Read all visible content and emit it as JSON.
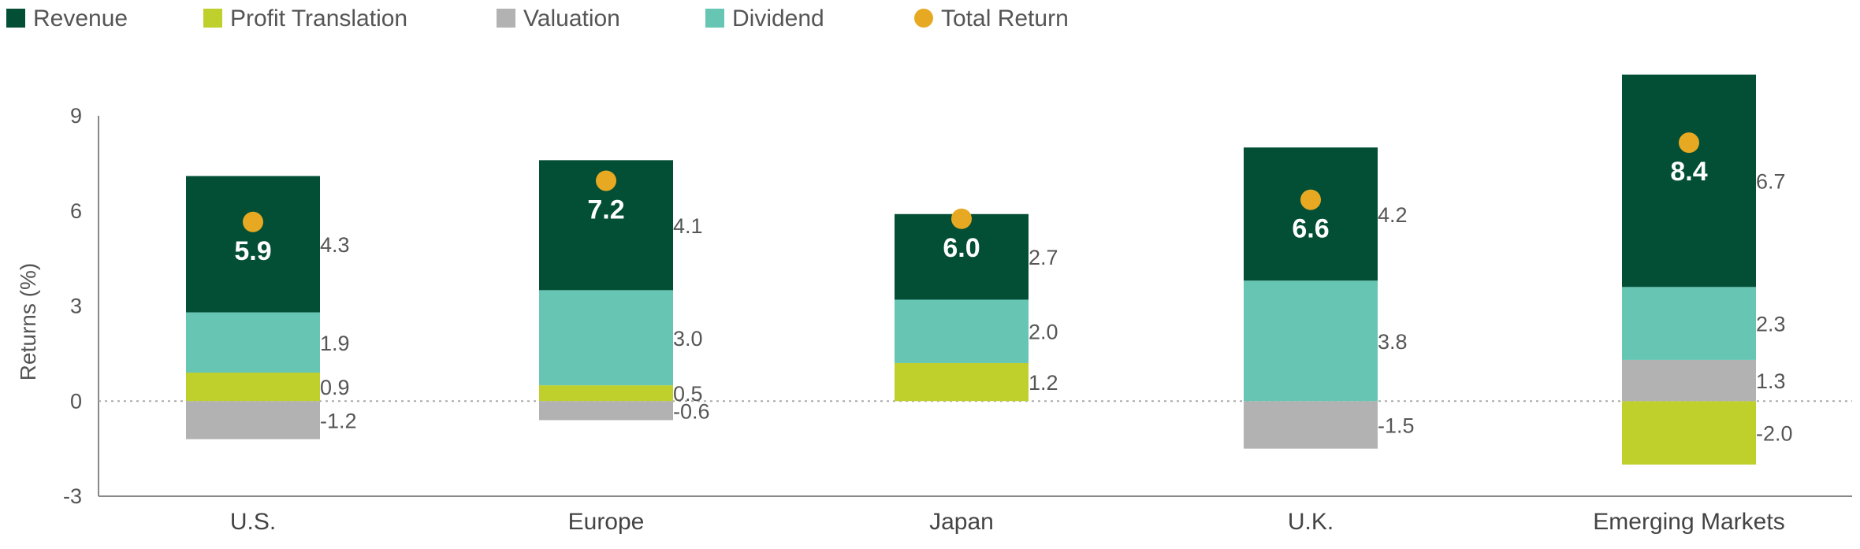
{
  "chart_data": {
    "type": "bar",
    "stacked": true,
    "ylabel": "Returns (%)",
    "ylim": [
      -3,
      9
    ],
    "yticks": [
      -3,
      0,
      3,
      6,
      9
    ],
    "grid": false,
    "zero_line": "dotted",
    "legend_position": "top-left",
    "categories": [
      "U.S.",
      "Europe",
      "Japan",
      "U.K.",
      "Emerging Markets"
    ],
    "series": [
      {
        "name": "Revenue",
        "color": "#034f36",
        "values": [
          4.3,
          4.1,
          2.7,
          4.2,
          6.7
        ]
      },
      {
        "name": "Profit Translation",
        "color": "#bfcf2c",
        "values": [
          0.9,
          0.5,
          1.2,
          0.0,
          -2.0
        ]
      },
      {
        "name": "Valuation",
        "color": "#b2b2b2",
        "values": [
          -1.2,
          -0.6,
          0.0,
          -1.5,
          1.3
        ]
      },
      {
        "name": "Dividend",
        "color": "#66c5b3",
        "values": [
          1.9,
          3.0,
          2.0,
          3.8,
          2.3
        ]
      }
    ],
    "side_labels": [
      [
        "4.3",
        "1.9",
        "0.9",
        "-1.2"
      ],
      [
        "4.1",
        "3.0",
        "0.5",
        "-0.6"
      ],
      [
        "2.7",
        "2.0",
        "1.2"
      ],
      [
        "4.2",
        "3.8",
        "-1.5"
      ],
      [
        "6.7",
        "2.3",
        "1.3",
        "-2.0"
      ]
    ],
    "total_return": {
      "name": "Total Return",
      "color": "#e8a922",
      "values": [
        5.9,
        7.2,
        6.0,
        6.6,
        8.4
      ],
      "labels": [
        "5.9",
        "7.2",
        "6.0",
        "6.6",
        "8.4"
      ]
    }
  }
}
